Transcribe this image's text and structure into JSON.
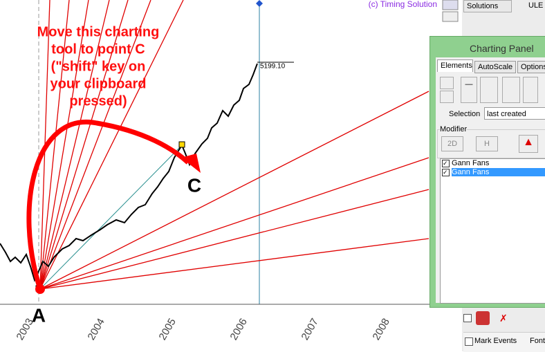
{
  "copyright": "(c) Timing Solution",
  "top_tabs": [
    "Solutions",
    "ULE"
  ],
  "annotation": {
    "lines": [
      "Move this charting",
      "tool to point C",
      "(\"shift\" key on",
      "your clipboard",
      "pressed)"
    ],
    "point_a": "A",
    "point_c": "C"
  },
  "price_label": "5199.10",
  "x_axis_labels": [
    "2003",
    "2004",
    "2005",
    "2006",
    "2007",
    "2008"
  ],
  "panel": {
    "title": "Charting Panel",
    "tabs": [
      "Elements",
      "AutoScale",
      "Options"
    ],
    "selection_label": "Selection",
    "selection_value": "last created",
    "modifier_label": "Modifier",
    "modifier_buttons": [
      "2D",
      "H"
    ],
    "items": [
      "Gann Fans",
      "Gann Fans"
    ]
  },
  "bottom": {
    "mark_events": "Mark Events",
    "font": "Font"
  }
}
